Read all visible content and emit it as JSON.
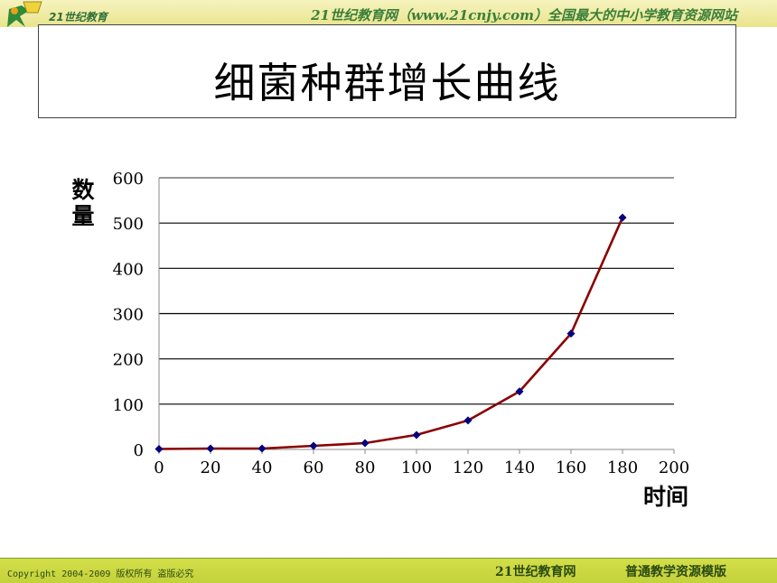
{
  "header": {
    "logo_text": "21世纪教育",
    "slogan": "21世纪教育网（www.21cnjy.com）全国最大的中小学教育资源网站"
  },
  "slide": {
    "title": "细菌种群增长曲线"
  },
  "footer": {
    "copyright": "Copyright 2004-2009 版权所有 盗版必究",
    "brand": "21世纪教育网",
    "template": "普通教学资源模版"
  },
  "colors": {
    "curve": "#8b0000",
    "marker": "#000080",
    "grid": "#000000"
  },
  "chart_data": {
    "type": "scatter",
    "xlabel": "时间",
    "ylabel": "数量",
    "xlim": [
      0,
      200
    ],
    "ylim": [
      0,
      600
    ],
    "x_ticks": [
      0,
      20,
      40,
      60,
      80,
      100,
      120,
      140,
      160,
      180,
      200
    ],
    "y_ticks": [
      0,
      100,
      200,
      300,
      400,
      500,
      600
    ],
    "grid": true,
    "series": [
      {
        "x": [
          0,
          20,
          40,
          60,
          80,
          100,
          120,
          140,
          160,
          180
        ],
        "y": [
          1,
          2,
          2,
          8,
          14,
          32,
          64,
          128,
          256,
          512
        ]
      }
    ]
  }
}
